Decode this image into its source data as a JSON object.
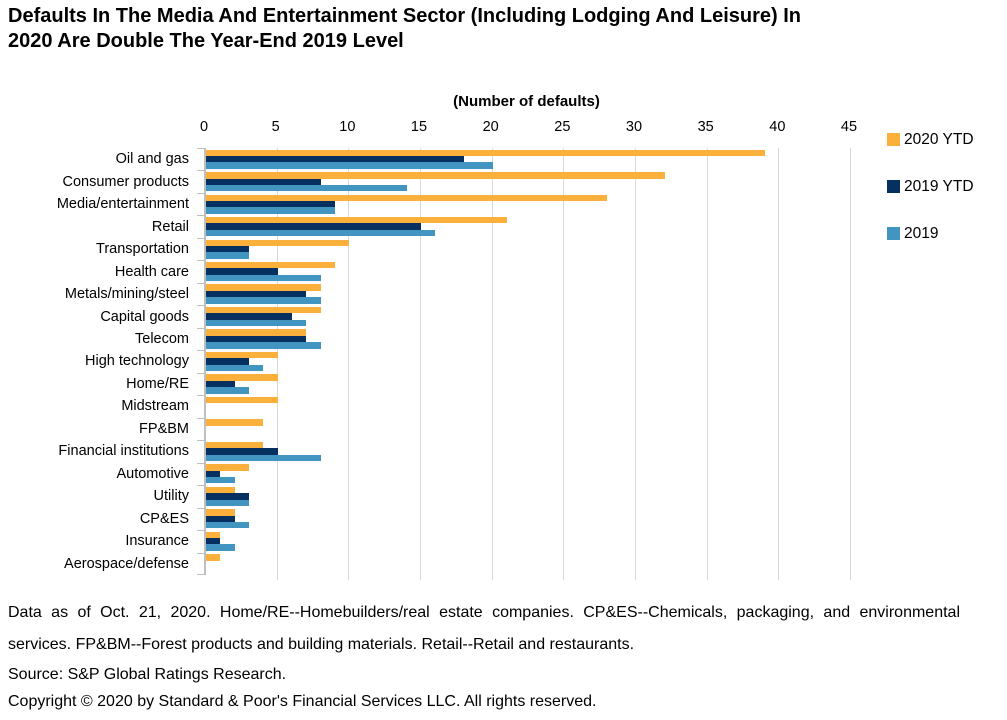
{
  "title": "Defaults In The Media And Entertainment Sector (Including Lodging And Leisure) In 2020 Are Double The Year-End 2019 Level",
  "chart_data": {
    "type": "bar",
    "orientation": "horizontal",
    "axis_title": "(Number of defaults)",
    "xlim": [
      0,
      45
    ],
    "x_ticks": [
      0,
      5,
      10,
      15,
      20,
      25,
      30,
      35,
      40,
      45
    ],
    "grid": true,
    "gridline_color": "#D9D9D9",
    "axis_color": "#BFBFBF",
    "legend_position": "right",
    "categories": [
      "Oil and gas",
      "Consumer products",
      "Media/entertainment",
      "Retail",
      "Transportation",
      "Health care",
      "Metals/mining/steel",
      "Capital goods",
      "Telecom",
      "High technology",
      "Home/RE",
      "Midstream",
      "FP&BM",
      "Financial institutions",
      "Automotive",
      "Utility",
      "CP&ES",
      "Insurance",
      "Aerospace/defense"
    ],
    "series": [
      {
        "name": "2020 YTD",
        "color": "#FBB03C",
        "values": [
          39,
          32,
          28,
          21,
          10,
          9,
          8,
          8,
          7,
          5,
          5,
          5,
          4,
          4,
          3,
          2,
          2,
          1,
          1
        ]
      },
      {
        "name": "2019 YTD",
        "color": "#06305F",
        "values": [
          18,
          8,
          9,
          15,
          3,
          5,
          7,
          6,
          7,
          3,
          2,
          0,
          0,
          5,
          1,
          3,
          2,
          1,
          0
        ]
      },
      {
        "name": "2019",
        "color": "#4295C1",
        "values": [
          20,
          14,
          9,
          16,
          3,
          8,
          8,
          7,
          8,
          4,
          3,
          0,
          0,
          8,
          2,
          3,
          3,
          2,
          0
        ]
      }
    ]
  },
  "footer": {
    "note": "Data as of Oct. 21, 2020. Home/RE--Homebuilders/real estate companies. CP&ES--Chemicals, packaging, and environmental services. FP&BM--Forest products and building materials. Retail--Retail and restaurants.",
    "source": "Source: S&P Global Ratings Research.",
    "copyright": "Copyright © 2020 by Standard & Poor's Financial Services LLC. All rights reserved."
  }
}
